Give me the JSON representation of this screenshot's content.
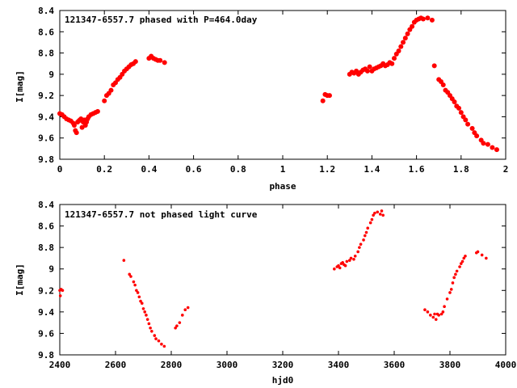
{
  "chart_data": [
    {
      "type": "scatter",
      "title": "121347-6557.7 phased with P=464.0day",
      "xlabel": "phase",
      "ylabel": "I[mag]",
      "xlim": [
        0,
        2
      ],
      "ylim": [
        9.8,
        8.4
      ],
      "y_inverted": true,
      "xticks": [
        "0",
        "0.2",
        "0.4",
        "0.6",
        "0.8",
        "1",
        "1.2",
        "1.4",
        "1.6",
        "1.8",
        "2"
      ],
      "xtick_values": [
        0,
        0.2,
        0.4,
        0.6,
        0.8,
        1.0,
        1.2,
        1.4,
        1.6,
        1.8,
        2.0
      ],
      "yticks": [
        "8.4",
        "8.6",
        "8.8",
        "9",
        "9.2",
        "9.4",
        "9.6",
        "9.8"
      ],
      "ytick_values": [
        8.4,
        8.6,
        8.8,
        9.0,
        9.2,
        9.4,
        9.6,
        9.8
      ],
      "grid": false,
      "marker_color": "#ff0000",
      "points": [
        [
          0.0,
          9.37
        ],
        [
          0.01,
          9.38
        ],
        [
          0.02,
          9.4
        ],
        [
          0.03,
          9.42
        ],
        [
          0.04,
          9.43
        ],
        [
          0.05,
          9.44
        ],
        [
          0.06,
          9.46
        ],
        [
          0.065,
          9.48
        ],
        [
          0.07,
          9.53
        ],
        [
          0.075,
          9.55
        ],
        [
          0.08,
          9.45
        ],
        [
          0.085,
          9.44
        ],
        [
          0.09,
          9.43
        ],
        [
          0.095,
          9.42
        ],
        [
          0.1,
          9.5
        ],
        [
          0.105,
          9.45
        ],
        [
          0.11,
          9.43
        ],
        [
          0.115,
          9.48
        ],
        [
          0.12,
          9.45
        ],
        [
          0.125,
          9.42
        ],
        [
          0.13,
          9.4
        ],
        [
          0.14,
          9.38
        ],
        [
          0.15,
          9.37
        ],
        [
          0.16,
          9.36
        ],
        [
          0.17,
          9.35
        ],
        [
          0.2,
          9.25
        ],
        [
          0.21,
          9.2
        ],
        [
          0.22,
          9.18
        ],
        [
          0.23,
          9.15
        ],
        [
          0.24,
          9.1
        ],
        [
          0.25,
          9.08
        ],
        [
          0.26,
          9.05
        ],
        [
          0.27,
          9.03
        ],
        [
          0.28,
          9.0
        ],
        [
          0.29,
          8.97
        ],
        [
          0.3,
          8.95
        ],
        [
          0.31,
          8.93
        ],
        [
          0.32,
          8.91
        ],
        [
          0.33,
          8.9
        ],
        [
          0.34,
          8.88
        ],
        [
          0.4,
          8.85
        ],
        [
          0.41,
          8.83
        ],
        [
          0.42,
          8.85
        ],
        [
          0.43,
          8.86
        ],
        [
          0.44,
          8.87
        ],
        [
          0.45,
          8.87
        ],
        [
          0.47,
          8.89
        ],
        [
          1.18,
          9.25
        ],
        [
          1.19,
          9.19
        ],
        [
          1.2,
          9.2
        ],
        [
          1.21,
          9.2
        ],
        [
          1.3,
          9.0
        ],
        [
          1.31,
          8.98
        ],
        [
          1.32,
          8.99
        ],
        [
          1.33,
          8.97
        ],
        [
          1.34,
          9.0
        ],
        [
          1.35,
          8.98
        ],
        [
          1.36,
          8.96
        ],
        [
          1.37,
          8.95
        ],
        [
          1.38,
          8.97
        ],
        [
          1.39,
          8.93
        ],
        [
          1.4,
          8.97
        ],
        [
          1.41,
          8.95
        ],
        [
          1.42,
          8.94
        ],
        [
          1.43,
          8.93
        ],
        [
          1.44,
          8.92
        ],
        [
          1.45,
          8.9
        ],
        [
          1.46,
          8.92
        ],
        [
          1.47,
          8.91
        ],
        [
          1.48,
          8.89
        ],
        [
          1.49,
          8.9
        ],
        [
          1.5,
          8.85
        ],
        [
          1.51,
          8.81
        ],
        [
          1.52,
          8.78
        ],
        [
          1.53,
          8.74
        ],
        [
          1.54,
          8.7
        ],
        [
          1.55,
          8.66
        ],
        [
          1.56,
          8.62
        ],
        [
          1.57,
          8.58
        ],
        [
          1.58,
          8.55
        ],
        [
          1.59,
          8.51
        ],
        [
          1.6,
          8.49
        ],
        [
          1.61,
          8.48
        ],
        [
          1.62,
          8.47
        ],
        [
          1.63,
          8.48
        ],
        [
          1.65,
          8.47
        ],
        [
          1.67,
          8.49
        ],
        [
          1.68,
          8.92
        ],
        [
          1.7,
          9.05
        ],
        [
          1.71,
          9.07
        ],
        [
          1.72,
          9.1
        ],
        [
          1.73,
          9.15
        ],
        [
          1.74,
          9.17
        ],
        [
          1.75,
          9.2
        ],
        [
          1.76,
          9.23
        ],
        [
          1.77,
          9.26
        ],
        [
          1.78,
          9.3
        ],
        [
          1.79,
          9.32
        ],
        [
          1.8,
          9.36
        ],
        [
          1.81,
          9.4
        ],
        [
          1.82,
          9.43
        ],
        [
          1.83,
          9.47
        ],
        [
          1.85,
          9.51
        ],
        [
          1.86,
          9.55
        ],
        [
          1.87,
          9.58
        ],
        [
          1.89,
          9.62
        ],
        [
          1.9,
          9.65
        ],
        [
          1.92,
          9.66
        ],
        [
          1.94,
          9.69
        ],
        [
          1.96,
          9.71
        ]
      ]
    },
    {
      "type": "scatter",
      "title": "121347-6557.7 not phased light curve",
      "xlabel": "hjd0",
      "ylabel": "I[mag]",
      "xlim": [
        2400,
        4000
      ],
      "ylim": [
        9.8,
        8.4
      ],
      "y_inverted": true,
      "xticks": [
        "2400",
        "2600",
        "2800",
        "3000",
        "3200",
        "3400",
        "3600",
        "3800",
        "4000"
      ],
      "xtick_values": [
        2400,
        2600,
        2800,
        3000,
        3200,
        3400,
        3600,
        3800,
        4000
      ],
      "yticks": [
        "8.4",
        "8.6",
        "8.8",
        "9",
        "9.2",
        "9.4",
        "9.6",
        "9.8"
      ],
      "ytick_values": [
        8.4,
        8.6,
        8.8,
        9.0,
        9.2,
        9.4,
        9.6,
        9.8
      ],
      "grid": false,
      "marker_color": "#ff0000",
      "points": [
        [
          2400,
          9.2
        ],
        [
          2402,
          9.25
        ],
        [
          2405,
          9.19
        ],
        [
          2410,
          9.2
        ],
        [
          2630,
          8.92
        ],
        [
          2650,
          9.05
        ],
        [
          2655,
          9.07
        ],
        [
          2665,
          9.12
        ],
        [
          2670,
          9.15
        ],
        [
          2675,
          9.2
        ],
        [
          2680,
          9.22
        ],
        [
          2685,
          9.26
        ],
        [
          2690,
          9.3
        ],
        [
          2695,
          9.32
        ],
        [
          2700,
          9.37
        ],
        [
          2705,
          9.4
        ],
        [
          2710,
          9.43
        ],
        [
          2715,
          9.47
        ],
        [
          2720,
          9.51
        ],
        [
          2725,
          9.55
        ],
        [
          2730,
          9.58
        ],
        [
          2740,
          9.62
        ],
        [
          2745,
          9.65
        ],
        [
          2755,
          9.67
        ],
        [
          2765,
          9.7
        ],
        [
          2775,
          9.72
        ],
        [
          2815,
          9.55
        ],
        [
          2820,
          9.53
        ],
        [
          2830,
          9.5
        ],
        [
          2840,
          9.43
        ],
        [
          2850,
          9.38
        ],
        [
          2860,
          9.36
        ],
        [
          3385,
          9.0
        ],
        [
          3395,
          8.98
        ],
        [
          3400,
          8.97
        ],
        [
          3405,
          8.99
        ],
        [
          3410,
          8.95
        ],
        [
          3415,
          8.94
        ],
        [
          3420,
          8.96
        ],
        [
          3425,
          8.97
        ],
        [
          3430,
          8.93
        ],
        [
          3440,
          8.92
        ],
        [
          3445,
          8.9
        ],
        [
          3455,
          8.91
        ],
        [
          3460,
          8.88
        ],
        [
          3470,
          8.84
        ],
        [
          3475,
          8.8
        ],
        [
          3480,
          8.77
        ],
        [
          3490,
          8.73
        ],
        [
          3495,
          8.69
        ],
        [
          3500,
          8.66
        ],
        [
          3505,
          8.62
        ],
        [
          3515,
          8.57
        ],
        [
          3520,
          8.54
        ],
        [
          3525,
          8.5
        ],
        [
          3530,
          8.48
        ],
        [
          3540,
          8.47
        ],
        [
          3550,
          8.49
        ],
        [
          3555,
          8.46
        ],
        [
          3560,
          8.5
        ],
        [
          3710,
          9.38
        ],
        [
          3720,
          9.4
        ],
        [
          3730,
          9.43
        ],
        [
          3740,
          9.45
        ],
        [
          3745,
          9.42
        ],
        [
          3750,
          9.47
        ],
        [
          3755,
          9.42
        ],
        [
          3760,
          9.43
        ],
        [
          3770,
          9.42
        ],
        [
          3775,
          9.4
        ],
        [
          3780,
          9.35
        ],
        [
          3790,
          9.28
        ],
        [
          3800,
          9.22
        ],
        [
          3805,
          9.19
        ],
        [
          3810,
          9.13
        ],
        [
          3815,
          9.08
        ],
        [
          3820,
          9.05
        ],
        [
          3825,
          9.02
        ],
        [
          3835,
          8.98
        ],
        [
          3840,
          8.95
        ],
        [
          3845,
          8.93
        ],
        [
          3850,
          8.9
        ],
        [
          3855,
          8.88
        ],
        [
          3895,
          8.85
        ],
        [
          3900,
          8.84
        ],
        [
          3915,
          8.87
        ],
        [
          3930,
          8.9
        ]
      ]
    }
  ]
}
